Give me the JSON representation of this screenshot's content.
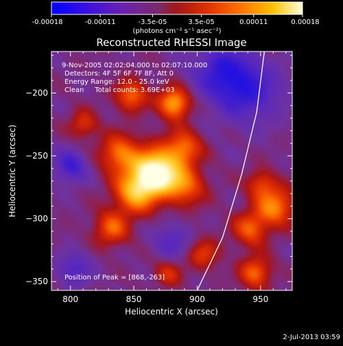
{
  "chart_data": {
    "type": "heatmap",
    "title": "Reconstructed RHESSI Image",
    "xlabel": "Heliocentric X (arcsec)",
    "ylabel": "Heliocentric Y (arcsec)",
    "xlim": [
      785,
      975
    ],
    "ylim": [
      -357,
      -167
    ],
    "xticks": [
      800,
      850,
      900,
      950
    ],
    "yticks": [
      -200,
      -250,
      -300,
      -350
    ],
    "grid": false,
    "colorbar": {
      "range": [
        -0.00018,
        0.00018
      ],
      "tick_values": [
        -0.00018,
        -0.00011,
        -3.5e-05,
        3.5e-05,
        0.00011,
        0.00018
      ],
      "tick_labels": [
        "-0.00018",
        "-0.00011",
        "-3.5e-05",
        "3.5e-05",
        "0.00011",
        "0.00018"
      ],
      "unit_label": "(photons cm⁻² s⁻¹ asec⁻²)",
      "colors": [
        "#0000ff",
        "#5a00c0",
        "#8a3aa0",
        "#b01818",
        "#ff5a00",
        "#ffb000",
        "#ffffd0",
        "#ffffff"
      ]
    },
    "info_lines": [
      "9-Nov-2005 02:02:04.000 to 02:07:10.000",
      "Detectors: 4F 5F 6F 7F 8F, Att 0",
      "Energy Range: 12.0 - 25.0 keV",
      "Clean     Total counts: 3.69E+03"
    ],
    "peak_label": "Position of Peak = [868,-263]",
    "peak": {
      "x": 868,
      "y": -263
    },
    "sources": [
      {
        "x": 868,
        "y": -263,
        "amp": 1.0,
        "sigma": 14
      },
      {
        "x": 838,
        "y": -248,
        "amp": 0.55,
        "sigma": 11
      },
      {
        "x": 850,
        "y": -280,
        "amp": 0.6,
        "sigma": 12
      },
      {
        "x": 832,
        "y": -308,
        "amp": 0.5,
        "sigma": 10
      },
      {
        "x": 890,
        "y": -243,
        "amp": 0.5,
        "sigma": 10
      },
      {
        "x": 892,
        "y": -275,
        "amp": 0.45,
        "sigma": 11
      },
      {
        "x": 882,
        "y": -208,
        "amp": 0.75,
        "sigma": 9
      },
      {
        "x": 848,
        "y": -202,
        "amp": 0.55,
        "sigma": 9
      },
      {
        "x": 810,
        "y": -225,
        "amp": 0.4,
        "sigma": 8
      },
      {
        "x": 962,
        "y": -290,
        "amp": 0.6,
        "sigma": 11
      },
      {
        "x": 942,
        "y": -308,
        "amp": 0.5,
        "sigma": 10
      },
      {
        "x": 946,
        "y": -343,
        "amp": 0.55,
        "sigma": 9
      },
      {
        "x": 905,
        "y": -328,
        "amp": 0.4,
        "sigma": 9
      },
      {
        "x": 877,
        "y": -343,
        "amp": 0.35,
        "sigma": 8
      },
      {
        "x": 950,
        "y": -272,
        "amp": 0.4,
        "sigma": 8
      },
      {
        "x": 940,
        "y": -198,
        "amp": -0.5,
        "sigma": 18
      },
      {
        "x": 918,
        "y": -182,
        "amp": -0.45,
        "sigma": 16
      },
      {
        "x": 800,
        "y": -258,
        "amp": -0.5,
        "sigma": 9
      },
      {
        "x": 803,
        "y": -340,
        "amp": -0.4,
        "sigma": 9
      },
      {
        "x": 880,
        "y": -318,
        "amp": -0.35,
        "sigma": 10
      }
    ],
    "limb_curve": [
      [
        900,
        -357
      ],
      [
        920,
        -315
      ],
      [
        935,
        -265
      ],
      [
        947,
        -215
      ],
      [
        953,
        -167
      ]
    ]
  },
  "footer": {
    "timestamp": "2-Jul-2013 03:59"
  }
}
